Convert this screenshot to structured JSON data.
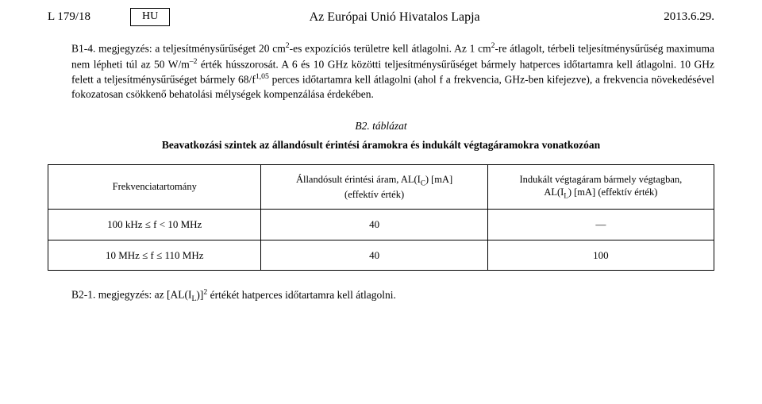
{
  "header": {
    "left": "L 179/18",
    "lang": "HU",
    "title": "Az Európai Unió Hivatalos Lapja",
    "date": "2013.6.29."
  },
  "noteB14": {
    "label": "B1-4. megjegyzés:",
    "text": "a teljesítménysűrűséget 20 cm²-es expozíciós területre kell átlagolni. Az 1 cm²-re átlagolt, térbeli teljesítménysűrűség maximuma nem lépheti túl az 50 W/m⁻² érték hússzorosát. A 6 és 10 GHz közötti teljesítménysűrűséget bármely hatperces időtartamra kell átlagolni. 10 GHz felett a teljesít­ménysűrűséget bármely 68/f¹,⁰⁵ perces időtartamra kell átlagolni (ahol f a frekvencia, GHz-ben kifejezve), a frekvencia növekedésével fokozatosan csökkenő behatolási mélységek kompenzálása érdekében."
  },
  "table": {
    "title": "B2. táblázat",
    "caption": "Beavatkozási szintek az állandósult érintési áramokra és indukált végtagáramokra vonatkozóan",
    "headers": {
      "col1": "Frekvenciatartomány",
      "col2_line1": "Állandósult érintési áram, AL(I",
      "col2_sub": "C",
      "col2_line1b": ") [mA]",
      "col2_line2": "(effektív érték)",
      "col3_line1": "Indukált végtagáram bármely végtagban,",
      "col3_line2a": "AL(I",
      "col3_sub": "L",
      "col3_line2b": ") [mA] (effektív érték)"
    },
    "rows": [
      {
        "range": "100 kHz ≤ f < 10 MHz",
        "contact": "40",
        "limb": "—"
      },
      {
        "range": "10 MHz ≤ f ≤ 110 MHz",
        "contact": "40",
        "limb": "100"
      }
    ]
  },
  "noteB21": {
    "label": "B2-1. megjegyzés:",
    "pre": "az [AL(I",
    "sub": "L",
    "post": ")]² értékét hatperces időtartamra kell átlagolni."
  }
}
